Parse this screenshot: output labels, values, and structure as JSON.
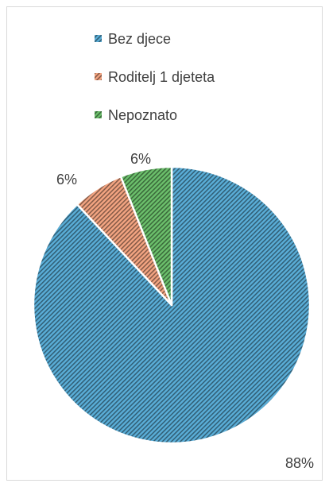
{
  "chart_data": {
    "type": "pie",
    "title": "",
    "categories": [
      "Bez djece",
      "Roditelj 1 djeteta",
      "Nepoznato"
    ],
    "values": [
      88,
      6,
      6
    ],
    "data_labels": [
      "88%",
      "6%",
      "6%"
    ],
    "colors": [
      "#5aaed8",
      "#f4a582",
      "#6cc06c"
    ],
    "fill_pattern": "diagonal-hatch",
    "legend": "top",
    "start_angle": "12 o'clock",
    "direction": "clockwise"
  }
}
